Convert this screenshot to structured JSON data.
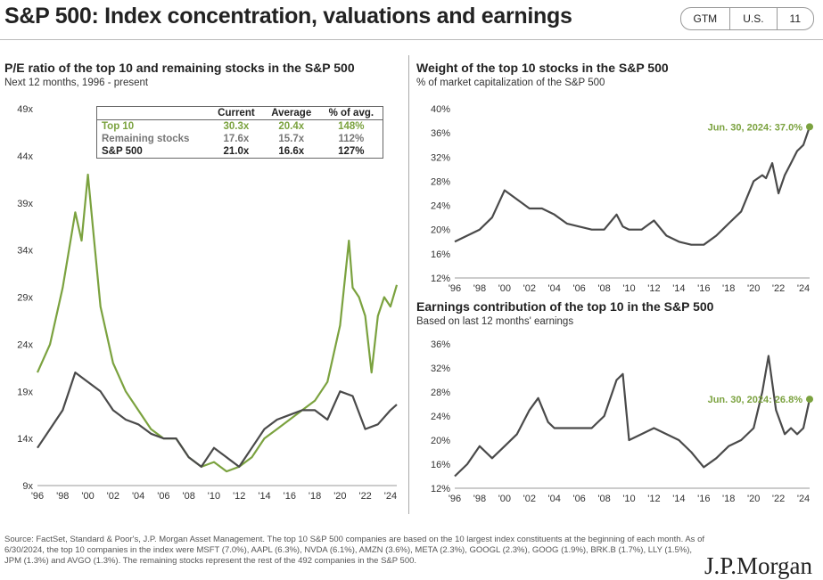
{
  "header": {
    "title": "S&P 500: Index concentration, valuations and earnings",
    "badges": [
      "GTM",
      "U.S.",
      "11"
    ]
  },
  "colors": {
    "green": "#7ba23f",
    "dark": "#4a4a4a"
  },
  "table": {
    "headers": [
      "",
      "Current",
      "Average",
      "% of avg."
    ],
    "rows": [
      [
        "Top 10",
        "30.3x",
        "20.4x",
        "148%"
      ],
      [
        "Remaining stocks",
        "17.6x",
        "15.7x",
        "112%"
      ],
      [
        "S&P 500",
        "21.0x",
        "16.6x",
        "127%"
      ]
    ]
  },
  "chart_data": [
    {
      "type": "line",
      "title": "P/E ratio of the top 10 and remaining stocks in the S&P 500",
      "subtitle": "Next 12 months, 1996 - present",
      "ylim": [
        9,
        49
      ],
      "yticks": [
        "9x",
        "14x",
        "19x",
        "24x",
        "29x",
        "34x",
        "39x",
        "44x",
        "49x"
      ],
      "yvals": [
        9,
        14,
        19,
        24,
        29,
        34,
        39,
        44,
        49
      ],
      "xticks": [
        "'96",
        "'98",
        "'00",
        "'02",
        "'04",
        "'06",
        "'08",
        "'10",
        "'12",
        "'14",
        "'16",
        "'18",
        "'20",
        "'22",
        "'24"
      ],
      "xlim": [
        1996,
        2024.5
      ],
      "series": [
        {
          "name": "Top 10",
          "color": "#7ba23f",
          "x": [
            1996,
            1997,
            1998,
            1999,
            1999.5,
            2000,
            2000.5,
            2001,
            2002,
            2003,
            2004,
            2005,
            2006,
            2007,
            2008,
            2009,
            2010,
            2011,
            2012,
            2013,
            2014,
            2015,
            2016,
            2017,
            2018,
            2019,
            2020,
            2020.7,
            2021,
            2021.5,
            2022,
            2022.5,
            2023,
            2023.5,
            2024,
            2024.5
          ],
          "y": [
            21,
            24,
            30,
            38,
            35,
            42,
            35,
            28,
            22,
            19,
            17,
            15,
            14,
            14,
            12,
            11,
            11.5,
            10.5,
            11,
            12,
            14,
            15,
            16,
            17,
            18,
            20,
            26,
            35,
            30,
            29,
            27,
            21,
            27,
            29,
            28,
            30.3
          ]
        },
        {
          "name": "Remaining stocks",
          "color": "#4a4a4a",
          "x": [
            1996,
            1997,
            1998,
            1999,
            2000,
            2001,
            2002,
            2003,
            2004,
            2005,
            2006,
            2007,
            2008,
            2009,
            2010,
            2011,
            2012,
            2013,
            2014,
            2015,
            2016,
            2017,
            2018,
            2019,
            2020,
            2021,
            2022,
            2023,
            2024,
            2024.5
          ],
          "y": [
            13,
            15,
            17,
            21,
            20,
            19,
            17,
            16,
            15.5,
            14.5,
            14,
            14,
            12,
            11,
            13,
            12,
            11,
            13,
            15,
            16,
            16.5,
            17,
            17,
            16,
            19,
            18.5,
            15,
            15.5,
            17,
            17.6
          ]
        }
      ]
    },
    {
      "type": "line",
      "title": "Weight of the top 10 stocks in the S&P 500",
      "subtitle": "% of market capitalization of the S&P 500",
      "ylim": [
        12,
        40
      ],
      "yticks": [
        "12%",
        "16%",
        "20%",
        "24%",
        "28%",
        "32%",
        "36%",
        "40%"
      ],
      "yvals": [
        12,
        16,
        20,
        24,
        28,
        32,
        36,
        40
      ],
      "xticks": [
        "'96",
        "'98",
        "'00",
        "'02",
        "'04",
        "'06",
        "'08",
        "'10",
        "'12",
        "'14",
        "'16",
        "'18",
        "'20",
        "'22",
        "'24"
      ],
      "xlim": [
        1996,
        2024.5
      ],
      "annotation": "Jun. 30, 2024: 37.0%",
      "series": [
        {
          "name": "Top 10 weight",
          "color": "#4a4a4a",
          "x": [
            1996,
            1998,
            1999,
            2000,
            2001,
            2002,
            2003,
            2004,
            2005,
            2006,
            2007,
            2008,
            2009,
            2009.5,
            2010,
            2011,
            2012,
            2013,
            2014,
            2015,
            2016,
            2017,
            2018,
            2019,
            2020,
            2020.7,
            2021,
            2021.5,
            2022,
            2022.5,
            2023,
            2023.5,
            2024,
            2024.5
          ],
          "y": [
            18,
            20,
            22,
            26.5,
            25,
            23.5,
            23.5,
            22.5,
            21,
            20.5,
            20,
            20,
            22.5,
            20.5,
            20,
            20,
            21.5,
            19,
            18,
            17.5,
            17.5,
            19,
            21,
            23,
            28,
            29,
            28.5,
            31,
            26,
            29,
            31,
            33,
            34,
            37
          ]
        }
      ]
    },
    {
      "type": "line",
      "title": "Earnings contribution of the top 10 in the S&P 500",
      "subtitle": "Based on last 12 months' earnings",
      "ylim": [
        12,
        36
      ],
      "yticks": [
        "12%",
        "16%",
        "20%",
        "24%",
        "28%",
        "32%",
        "36%"
      ],
      "yvals": [
        12,
        16,
        20,
        24,
        28,
        32,
        36
      ],
      "xticks": [
        "'96",
        "'98",
        "'00",
        "'02",
        "'04",
        "'06",
        "'08",
        "'10",
        "'12",
        "'14",
        "'16",
        "'18",
        "'20",
        "'22",
        "'24"
      ],
      "xlim": [
        1996,
        2024.5
      ],
      "annotation": "Jun. 30, 2024: 26.8%",
      "series": [
        {
          "name": "Earnings contribution",
          "color": "#4a4a4a",
          "x": [
            1996,
            1997,
            1998,
            1999,
            2000,
            2001,
            2002,
            2002.7,
            2003.5,
            2004,
            2005,
            2006,
            2007,
            2008,
            2009,
            2009.5,
            2010,
            2011,
            2012,
            2013,
            2014,
            2015,
            2016,
            2017,
            2018,
            2019,
            2020,
            2020.7,
            2021.2,
            2021.8,
            2022.5,
            2023,
            2023.5,
            2024,
            2024.5
          ],
          "y": [
            14,
            16,
            19,
            17,
            19,
            21,
            25,
            27,
            23,
            22,
            22,
            22,
            22,
            24,
            30,
            31,
            20,
            21,
            22,
            21,
            20,
            18,
            15.5,
            17,
            19,
            20,
            22,
            28,
            34,
            25,
            21,
            22,
            21,
            22,
            26.8
          ]
        }
      ]
    }
  ],
  "footer": {
    "source": "Source: FactSet, Standard & Poor's, J.P. Morgan Asset Management. The top 10 S&P 500 companies are based on the 10 largest index constituents at the beginning of each month. As of 6/30/2024, the top 10 companies in the index were MSFT (7.0%), AAPL (6.3%), NVDA (6.1%), AMZN (3.6%), META (2.3%), GOOGL (2.3%), GOOG (1.9%), BRK.B (1.7%), LLY (1.5%), JPM (1.3%) and AVGO (1.3%). The remaining stocks represent the rest of the 492 companies in the S&P 500.",
    "logo": "J.P.Morgan"
  }
}
